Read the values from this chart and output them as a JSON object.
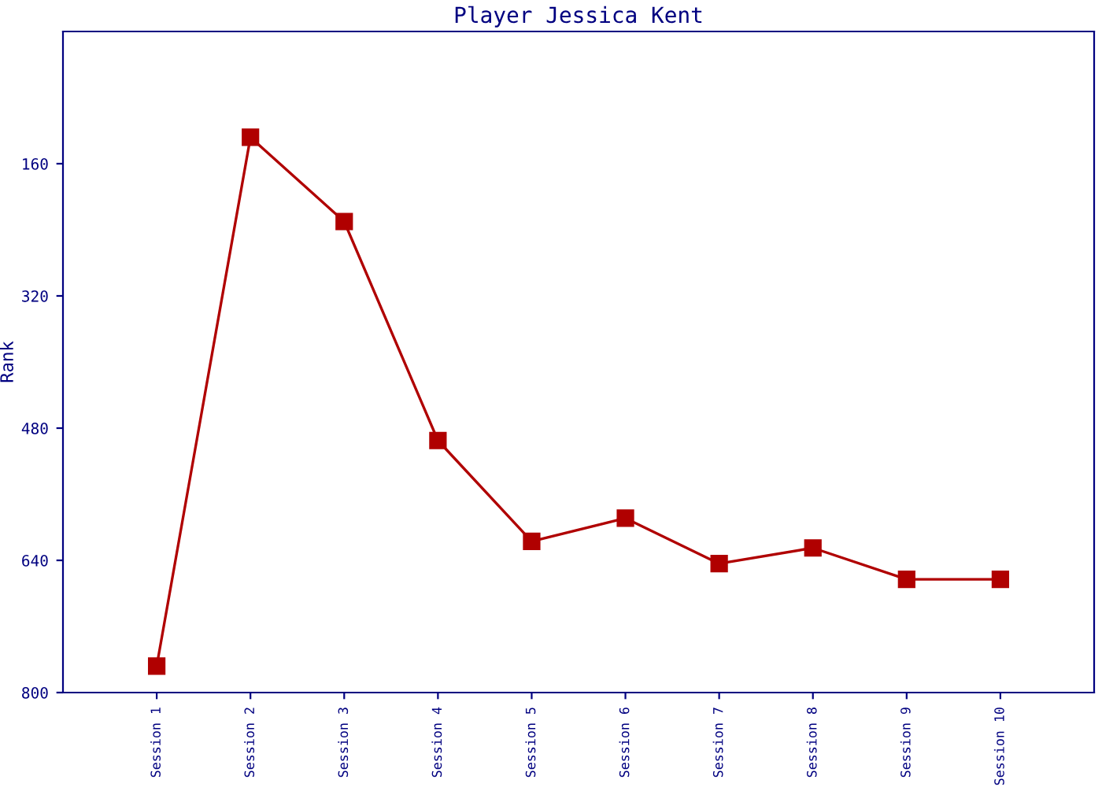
{
  "chart_data": {
    "type": "line",
    "title": "Player Jessica Kent",
    "ylabel": "Rank",
    "categories": [
      "Session 1",
      "Session 2",
      "Session 3",
      "Session 4",
      "Session 5",
      "Session 6",
      "Session 7",
      "Session 8",
      "Session 9",
      "Session 10"
    ],
    "series": [
      {
        "color": "#b00000",
        "values": [
          768,
          128,
          230,
          495,
          617,
          589,
          644,
          625,
          663,
          663
        ]
      }
    ],
    "ylim": [
      800,
      0
    ],
    "yticks": [
      160,
      320,
      480,
      640,
      800
    ],
    "marker": "square",
    "line_style": "solid",
    "grid": false,
    "legend": false
  }
}
